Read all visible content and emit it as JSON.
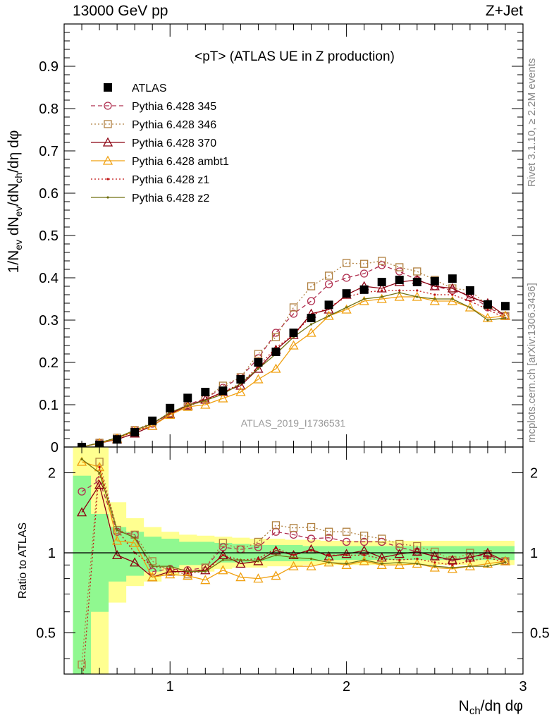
{
  "header": {
    "left": "13000 GeV pp",
    "right": "Z+Jet",
    "side_rivet": "Rivet 3.1.10, ≥ 2.2M events",
    "side_mcplots": "mcplots.cern.ch [arXiv:1306.3436]"
  },
  "axes": {
    "main_ylabel": "1/N_ev dN_ev/dN_ch/dη dφ",
    "ratio_ylabel": "Ratio to ATLAS",
    "xlabel": "N_ch/dη dφ"
  },
  "colors": {
    "atlas": "#000000",
    "p345": "#b03050",
    "p346": "#b08040",
    "p370": "#8b0010",
    "ambt1": "#f0a010",
    "z1": "#c01010",
    "z2": "#707010",
    "band_inner": "#90f890",
    "band_outer": "#ffff90"
  },
  "chart_data": [
    {
      "type": "line",
      "title": "<pT> (ATLAS UE in Z production)",
      "watermark": "ATLAS_2019_I1736531",
      "xlim": [
        0.4,
        3.0
      ],
      "ylim": [
        0,
        1.0
      ],
      "x_ticks": [
        "1",
        "2",
        "3"
      ],
      "y_ticks": [
        "0",
        "0.1",
        "0.2",
        "0.3",
        "0.4",
        "0.5",
        "0.6",
        "0.7",
        "0.8",
        "0.9"
      ],
      "x": [
        0.5,
        0.6,
        0.7,
        0.8,
        0.9,
        1.0,
        1.1,
        1.2,
        1.3,
        1.4,
        1.5,
        1.6,
        1.7,
        1.8,
        1.9,
        2.0,
        2.1,
        2.2,
        2.3,
        2.4,
        2.5,
        2.6,
        2.7,
        2.8,
        2.9
      ],
      "series": [
        {
          "name": "ATLAS",
          "style": "marker-square",
          "values": [
            0.0,
            0.005,
            0.018,
            0.035,
            0.062,
            0.092,
            0.116,
            0.13,
            0.133,
            0.16,
            0.2,
            0.225,
            0.27,
            0.305,
            0.336,
            0.363,
            0.372,
            0.39,
            0.395,
            0.39,
            0.392,
            0.398,
            0.37,
            0.337,
            0.333
          ]
        },
        {
          "name": "Pythia 6.428 345",
          "style": "dashed-circle",
          "values": [
            0.0,
            0.01,
            0.02,
            0.04,
            0.055,
            0.08,
            0.1,
            0.115,
            0.14,
            0.165,
            0.21,
            0.27,
            0.315,
            0.345,
            0.385,
            0.4,
            0.41,
            0.43,
            0.415,
            0.395,
            0.38,
            0.37,
            0.36,
            0.33,
            0.31
          ]
        },
        {
          "name": "Pythia 6.428 346",
          "style": "dotted-square",
          "values": [
            0.0,
            0.01,
            0.022,
            0.04,
            0.058,
            0.08,
            0.095,
            0.115,
            0.145,
            0.165,
            0.22,
            0.26,
            0.33,
            0.38,
            0.405,
            0.435,
            0.433,
            0.44,
            0.425,
            0.415,
            0.395,
            0.375,
            0.37,
            0.335,
            0.31
          ]
        },
        {
          "name": "Pythia 6.428 370",
          "style": "solid-triangle",
          "values": [
            0.0,
            0.009,
            0.018,
            0.032,
            0.05,
            0.078,
            0.098,
            0.112,
            0.13,
            0.145,
            0.185,
            0.23,
            0.265,
            0.315,
            0.325,
            0.36,
            0.38,
            0.375,
            0.39,
            0.395,
            0.38,
            0.375,
            0.355,
            0.34,
            0.31
          ]
        },
        {
          "name": "Pythia 6.428 ambt1",
          "style": "solid-open-triangle",
          "values": [
            0.0,
            0.009,
            0.02,
            0.038,
            0.05,
            0.076,
            0.095,
            0.1,
            0.115,
            0.13,
            0.16,
            0.185,
            0.24,
            0.27,
            0.31,
            0.325,
            0.345,
            0.35,
            0.355,
            0.355,
            0.345,
            0.345,
            0.33,
            0.305,
            0.31
          ]
        },
        {
          "name": "Pythia 6.428 z1",
          "style": "dotted-dot",
          "values": [
            0.0,
            0.01,
            0.022,
            0.035,
            0.055,
            0.08,
            0.097,
            0.11,
            0.13,
            0.15,
            0.19,
            0.235,
            0.265,
            0.31,
            0.33,
            0.355,
            0.365,
            0.37,
            0.37,
            0.37,
            0.36,
            0.36,
            0.345,
            0.325,
            0.305
          ]
        },
        {
          "name": "Pythia 6.428 z2",
          "style": "solid-dot",
          "values": [
            0.0,
            0.01,
            0.022,
            0.04,
            0.055,
            0.082,
            0.098,
            0.11,
            0.125,
            0.15,
            0.185,
            0.22,
            0.26,
            0.29,
            0.31,
            0.33,
            0.35,
            0.355,
            0.365,
            0.355,
            0.35,
            0.35,
            0.33,
            0.3,
            0.305
          ]
        }
      ],
      "legend_position": "top-left"
    },
    {
      "type": "line",
      "ylabel": "Ratio to ATLAS",
      "xlabel": "N_ch/dη dφ",
      "scale": "log",
      "ylim": [
        0.35,
        2.5
      ],
      "y_ticks": [
        "0.5",
        "1",
        "2"
      ],
      "x_ticks": [
        "1",
        "2",
        "3"
      ],
      "x": [
        0.5,
        0.6,
        0.7,
        0.8,
        0.9,
        1.0,
        1.1,
        1.2,
        1.3,
        1.4,
        1.5,
        1.6,
        1.7,
        1.8,
        1.9,
        2.0,
        2.1,
        2.2,
        2.3,
        2.4,
        2.5,
        2.6,
        2.7,
        2.8,
        2.9
      ],
      "bands": {
        "inner": [
          [
            0.3,
            1.95
          ],
          [
            0.6,
            1.4
          ],
          [
            0.78,
            1.25
          ],
          [
            0.82,
            1.2
          ],
          [
            0.85,
            1.15
          ],
          [
            0.88,
            1.13
          ],
          [
            0.9,
            1.1
          ],
          [
            0.9,
            1.1
          ],
          [
            0.92,
            1.09
          ],
          [
            0.92,
            1.08
          ],
          [
            0.93,
            1.07
          ],
          [
            0.93,
            1.07
          ],
          [
            0.93,
            1.07
          ],
          [
            0.93,
            1.06
          ],
          [
            0.94,
            1.06
          ],
          [
            0.94,
            1.06
          ],
          [
            0.94,
            1.06
          ],
          [
            0.94,
            1.06
          ],
          [
            0.94,
            1.06
          ],
          [
            0.94,
            1.06
          ],
          [
            0.94,
            1.06
          ],
          [
            0.94,
            1.06
          ],
          [
            0.94,
            1.06
          ],
          [
            0.94,
            1.06
          ],
          [
            0.94,
            1.06
          ]
        ],
        "outer": [
          [
            0.3,
            2.5
          ],
          [
            0.3,
            2.5
          ],
          [
            0.65,
            1.55
          ],
          [
            0.75,
            1.35
          ],
          [
            0.78,
            1.25
          ],
          [
            0.82,
            1.2
          ],
          [
            0.85,
            1.17
          ],
          [
            0.85,
            1.16
          ],
          [
            0.87,
            1.15
          ],
          [
            0.88,
            1.14
          ],
          [
            0.88,
            1.13
          ],
          [
            0.89,
            1.13
          ],
          [
            0.89,
            1.12
          ],
          [
            0.9,
            1.12
          ],
          [
            0.9,
            1.11
          ],
          [
            0.9,
            1.11
          ],
          [
            0.9,
            1.11
          ],
          [
            0.9,
            1.11
          ],
          [
            0.9,
            1.11
          ],
          [
            0.9,
            1.11
          ],
          [
            0.9,
            1.11
          ],
          [
            0.9,
            1.11
          ],
          [
            0.9,
            1.11
          ],
          [
            0.9,
            1.11
          ],
          [
            0.9,
            1.11
          ]
        ]
      },
      "series": [
        {
          "name": "Pythia 6.428 345",
          "values": [
            1.7,
            1.87,
            1.2,
            1.17,
            0.85,
            0.87,
            0.86,
            0.88,
            1.05,
            1.03,
            1.05,
            1.2,
            1.17,
            1.13,
            1.14,
            1.1,
            1.1,
            1.1,
            1.05,
            1.01,
            0.97,
            0.93,
            0.97,
            0.98,
            0.93
          ]
        },
        {
          "name": "Pythia 6.428 346",
          "values": [
            0.38,
            2.2,
            1.22,
            1.17,
            0.93,
            0.85,
            0.83,
            0.88,
            1.09,
            1.03,
            1.1,
            1.27,
            1.24,
            1.25,
            1.2,
            1.2,
            1.16,
            1.13,
            1.08,
            1.06,
            1.01,
            0.94,
            1.0,
            0.99,
            0.93
          ]
        },
        {
          "name": "Pythia 6.428 370",
          "values": [
            1.42,
            1.8,
            0.98,
            0.92,
            0.81,
            0.85,
            0.85,
            0.86,
            0.98,
            0.91,
            0.93,
            1.02,
            0.98,
            1.03,
            0.97,
            0.99,
            1.02,
            0.96,
            0.99,
            1.01,
            0.97,
            0.94,
            0.96,
            1.0,
            0.93
          ]
        },
        {
          "name": "Pythia 6.428 ambt1",
          "values": [
            2.2,
            2.1,
            1.11,
            1.09,
            0.81,
            0.83,
            0.82,
            0.79,
            0.86,
            0.81,
            0.8,
            0.82,
            0.89,
            0.89,
            0.92,
            0.9,
            0.93,
            0.9,
            0.9,
            0.91,
            0.88,
            0.87,
            0.89,
            0.91,
            0.93
          ]
        },
        {
          "name": "Pythia 6.428 z1",
          "values": [
            0.3,
            2.1,
            1.22,
            1.0,
            0.89,
            0.87,
            0.84,
            0.85,
            0.98,
            0.94,
            0.95,
            1.04,
            0.98,
            1.02,
            0.98,
            0.98,
            0.98,
            0.95,
            0.94,
            0.95,
            0.92,
            0.9,
            0.93,
            0.96,
            0.92
          ]
        },
        {
          "name": "Pythia 6.428 z2",
          "values": [
            2.25,
            2.0,
            1.22,
            1.14,
            0.89,
            0.89,
            0.85,
            0.85,
            0.94,
            0.94,
            0.93,
            0.98,
            0.96,
            0.95,
            0.92,
            0.91,
            0.94,
            0.91,
            0.92,
            0.91,
            0.89,
            0.88,
            0.89,
            0.89,
            0.92
          ]
        }
      ]
    }
  ]
}
